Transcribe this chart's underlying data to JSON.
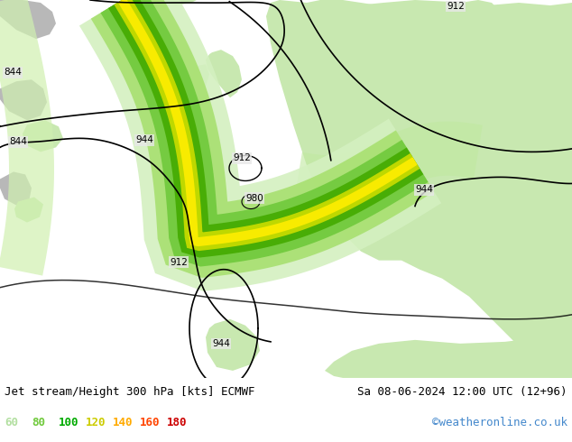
{
  "title_left": "Jet stream/Height 300 hPa [kts] ECMWF",
  "title_right": "Sa 08-06-2024 12:00 UTC (12+96)",
  "credit": "©weatheronline.co.uk",
  "legend_values": [
    "60",
    "80",
    "100",
    "120",
    "140",
    "160",
    "180"
  ],
  "legend_colors": [
    "#b2dfa0",
    "#6fc93b",
    "#00aa00",
    "#cccc00",
    "#ffaa00",
    "#ff4400",
    "#cc0000"
  ],
  "bg_color": "#f0f0f0",
  "land_color_light": "#c8e8b0",
  "land_color_mid": "#b8d890",
  "ocean_color": "#e8e8e8",
  "coast_color": "#aaaaaa",
  "contour_color": "#000000",
  "figsize": [
    6.34,
    4.9
  ],
  "dpi": 100,
  "bottom_bg": "#d8d8d8",
  "text_color_left": "#000000",
  "text_color_right": "#000000",
  "credit_color": "#4488cc",
  "jet_colors": [
    "#d4f0c0",
    "#a8e070",
    "#6fc93b",
    "#44aa00",
    "#ccdd00",
    "#ffee00"
  ],
  "jet_widths": [
    110,
    80,
    55,
    35,
    20,
    10
  ]
}
